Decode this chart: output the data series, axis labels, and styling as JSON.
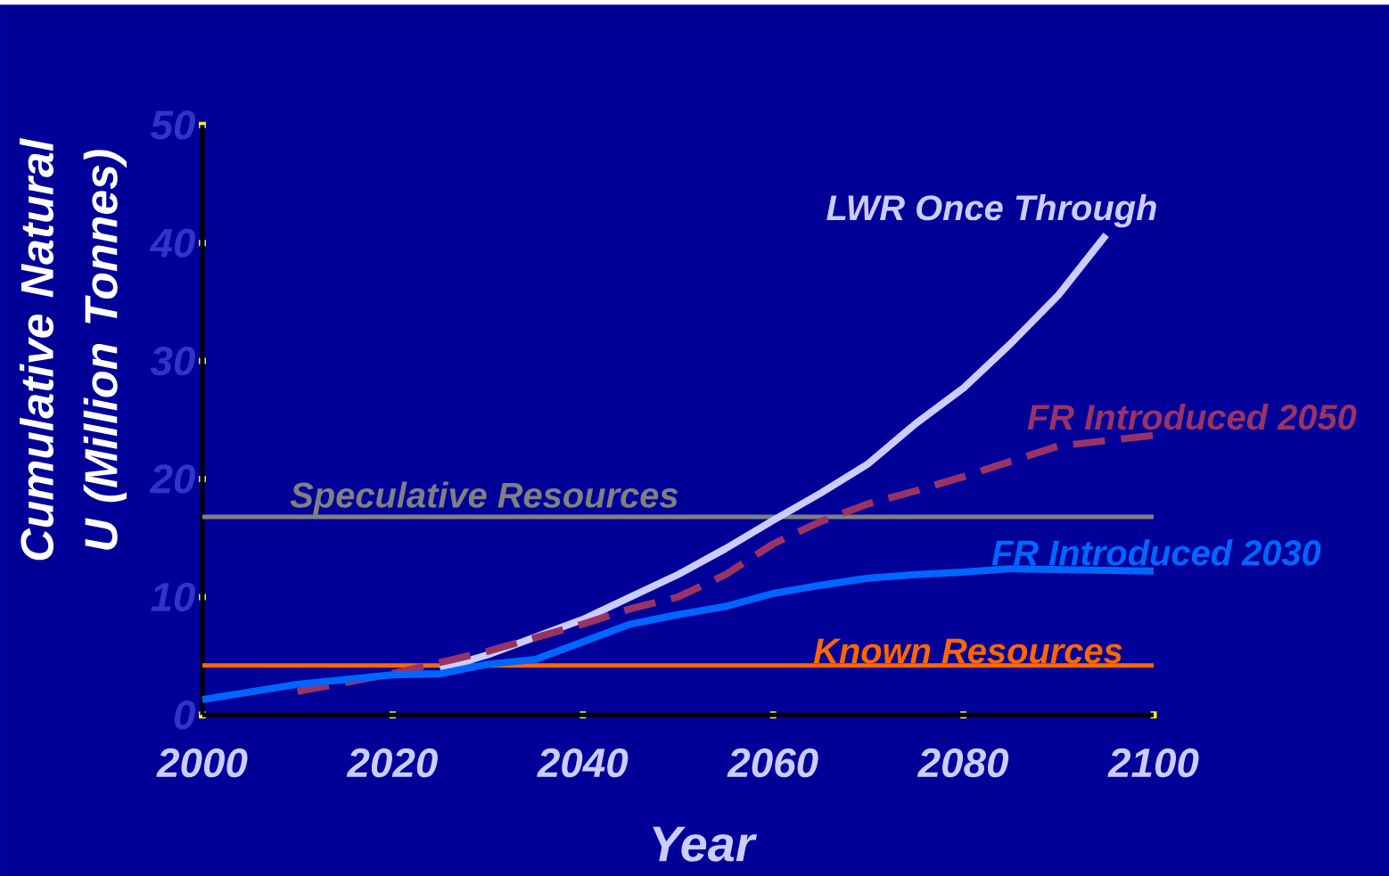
{
  "chart_data": {
    "type": "line",
    "xlabel": "Year",
    "ylabel": "Cumulative Natural U (Million Tonnes)",
    "xlim": [
      2000,
      2100
    ],
    "xticks": [
      2000,
      2020,
      2040,
      2060,
      2080,
      2100
    ],
    "ylim": [
      0,
      50
    ],
    "yticks": [
      0,
      10,
      20,
      30,
      40,
      50
    ],
    "series": [
      {
        "name": "LWR Once Through",
        "color": "#ccccff",
        "line_style": "solid",
        "x": [
          2025,
          2030,
          2040,
          2045,
          2050,
          2055,
          2060,
          2065,
          2070,
          2075,
          2080,
          2085,
          2090,
          2095
        ],
        "values": [
          3.9,
          5.1,
          8.1,
          10.0,
          11.9,
          14.1,
          16.5,
          18.8,
          21.3,
          24.7,
          27.7,
          31.5,
          35.6,
          40.7
        ]
      },
      {
        "name": "FR Introduced 2050",
        "color": "#993366",
        "line_style": "dashed",
        "x": [
          2010,
          2020,
          2030,
          2040,
          2045,
          2050,
          2055,
          2060,
          2065,
          2070,
          2075,
          2080,
          2085,
          2090,
          2100
        ],
        "values": [
          2.0,
          3.5,
          5.4,
          7.7,
          9.0,
          10.0,
          11.9,
          14.5,
          16.4,
          17.9,
          19.0,
          20.2,
          21.5,
          22.8,
          23.7
        ]
      },
      {
        "name": "FR Introduced 2030",
        "color": "#0066ff",
        "line_style": "solid",
        "x": [
          2000,
          2010,
          2020,
          2025,
          2030,
          2035,
          2040,
          2045,
          2050,
          2055,
          2060,
          2065,
          2070,
          2075,
          2080,
          2085,
          2100
        ],
        "values": [
          1.3,
          2.6,
          3.4,
          3.5,
          4.3,
          4.7,
          6.2,
          7.7,
          8.5,
          9.2,
          10.3,
          11.0,
          11.6,
          11.9,
          12.1,
          12.4,
          12.2
        ]
      }
    ],
    "ref_lines": [
      {
        "axis": "y",
        "value": 16.8,
        "label": "Speculative Resources",
        "color": "#808080"
      },
      {
        "axis": "y",
        "value": 4.2,
        "label": "Known Resources",
        "color": "#ff6600"
      }
    ]
  }
}
